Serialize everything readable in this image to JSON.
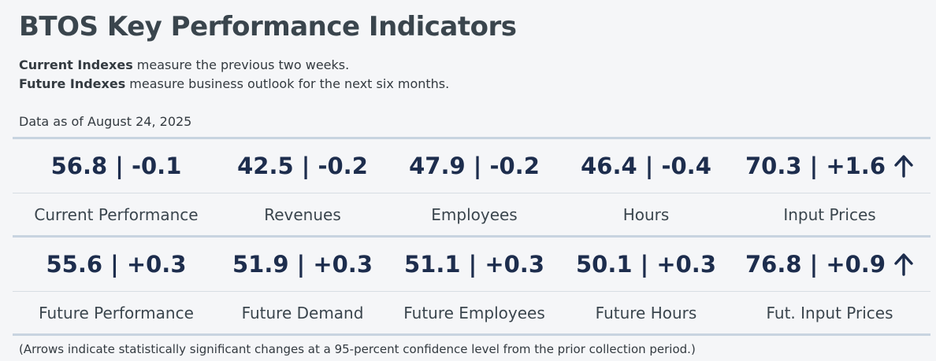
{
  "title": "BTOS Key Performance Indicators",
  "description": {
    "line1_bold": "Current Indexes",
    "line1_rest": " measure the previous two weeks.",
    "line2_bold": "Future Indexes",
    "line2_rest": " measure business outlook for the next six months."
  },
  "as_of": "Data as of August 24, 2025",
  "current": [
    {
      "value": "56.8 | -0.1",
      "label": "Current Performance",
      "arrow": ""
    },
    {
      "value": "42.5 | -0.2",
      "label": "Revenues",
      "arrow": ""
    },
    {
      "value": "47.9 | -0.2",
      "label": "Employees",
      "arrow": ""
    },
    {
      "value": "46.4 | -0.4",
      "label": "Hours",
      "arrow": ""
    },
    {
      "value": "70.3 | +1.6",
      "label": "Input Prices",
      "arrow": "up-arrow-icon"
    }
  ],
  "future": [
    {
      "value": "55.6 | +0.3",
      "label": "Future Performance",
      "arrow": ""
    },
    {
      "value": "51.9 | +0.3",
      "label": "Future Demand",
      "arrow": ""
    },
    {
      "value": "51.1 | +0.3",
      "label": "Future Employees",
      "arrow": ""
    },
    {
      "value": "50.1 | +0.3",
      "label": "Future Hours",
      "arrow": ""
    },
    {
      "value": "76.8 | +0.9",
      "label": "Fut. Input Prices",
      "arrow": "up-arrow-icon"
    }
  ],
  "footnote": "(Arrows indicate statistically significant changes at a 95-percent confidence level from the prior collection period.)",
  "colors": {
    "value": "#1d2d4d",
    "title": "#3a454d",
    "rule": "#c8d4e0"
  }
}
